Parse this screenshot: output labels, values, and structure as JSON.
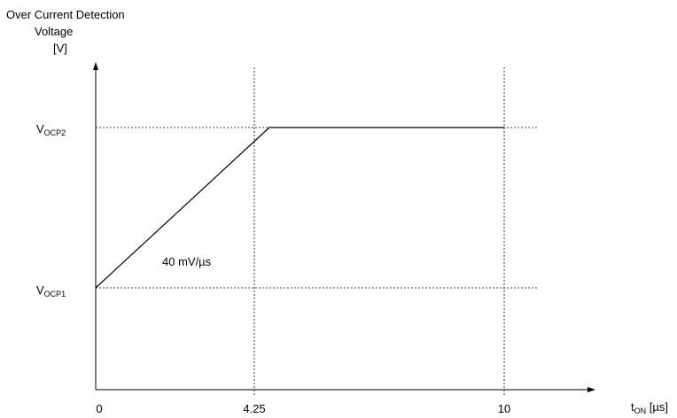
{
  "chart_data": {
    "type": "line",
    "ylabel_lines": [
      "Over Current Detection",
      "Voltage",
      "[V]"
    ],
    "xlabel": {
      "main": "t",
      "sub": "ON",
      "unit": " [µs]"
    },
    "x_ticks": [
      "0",
      "4.25",
      "10"
    ],
    "y_levels": [
      {
        "main": "V",
        "sub": "OCP2"
      },
      {
        "main": "V",
        "sub": "OCP1"
      }
    ],
    "series": [
      {
        "x": [
          0,
          4.25,
          10
        ],
        "y": [
          "VOCP1",
          "VOCP2",
          "VOCP2"
        ]
      }
    ],
    "annotation": "40 mV/µs",
    "reference_lines": {
      "vertical_x": [
        4.25,
        10
      ],
      "horizontal_y": [
        "VOCP2",
        "VOCP1"
      ]
    }
  }
}
